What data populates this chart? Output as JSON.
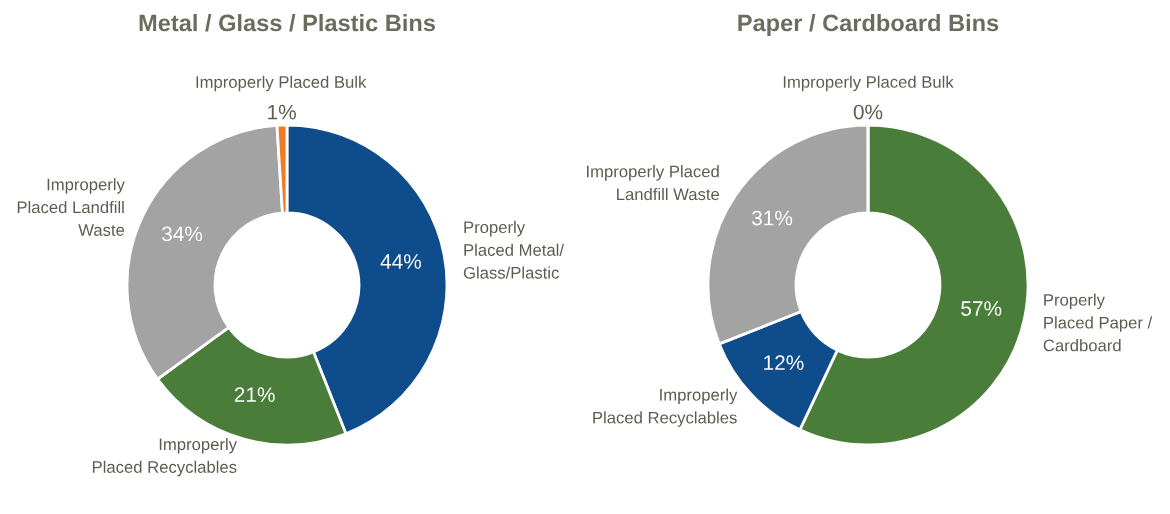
{
  "chart_data": [
    {
      "type": "donut",
      "title": "Metal / Glass / Plastic Bins",
      "categories": [
        "Properly\nPlaced Metal/\nGlass/Plastic",
        "Improperly\nPlaced Recyclables",
        "Improperly\nPlaced Landfill\nWaste",
        "Improperly Placed Bulk"
      ],
      "values": [
        44,
        21,
        34,
        1
      ],
      "colors": [
        "#0f4c8c",
        "#4a7c3a",
        "#a3a3a3",
        "#f07c2a"
      ],
      "value_labels": [
        "44%",
        "21%",
        "34%",
        "1%"
      ],
      "legend": false
    },
    {
      "type": "donut",
      "title": "Paper / Cardboard Bins",
      "categories": [
        "Properly\nPlaced Paper /\nCardboard",
        "Improperly\nPlaced Recyclables",
        "Improperly Placed\nLandfill Waste",
        "Improperly Placed Bulk"
      ],
      "values": [
        57,
        12,
        31,
        0
      ],
      "colors": [
        "#4a7c3a",
        "#0f4c8c",
        "#a3a3a3",
        "#f07c2a"
      ],
      "value_labels": [
        "57%",
        "12%",
        "31%",
        "0%"
      ],
      "legend": false
    }
  ]
}
